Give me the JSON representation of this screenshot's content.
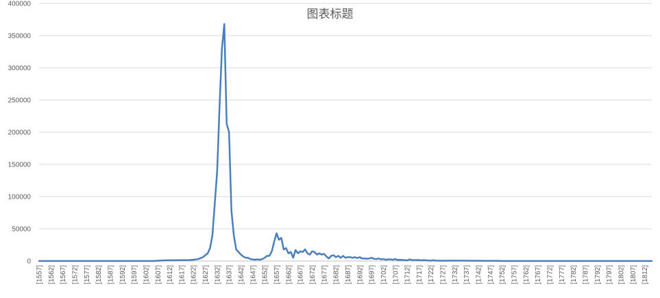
{
  "chart_data": {
    "type": "line",
    "title": "图表标题",
    "xlabel": "",
    "ylabel": "",
    "ylim": [
      0,
      400000
    ],
    "yticks": [
      0,
      50000,
      100000,
      150000,
      200000,
      250000,
      300000,
      350000,
      400000
    ],
    "grid": true,
    "legend": "none",
    "colors": {
      "series": "#4a7ebb",
      "grid": "#d9d9d9",
      "axis": "#bfbfbf",
      "text": "#595959"
    },
    "x_start": 1557,
    "x_end": 1815,
    "x_tick_labels": [
      "[1557]",
      "[1562]",
      "[1567]",
      "[1572]",
      "[1577]",
      "[1582]",
      "[1587]",
      "[1592]",
      "[1597]",
      "[1602]",
      "[1607]",
      "[1612]",
      "[1617]",
      "[1622]",
      "[1627]",
      "[1632]",
      "[1637]",
      "[1642]",
      "[1647]",
      "[1652]",
      "[1657]",
      "[1662]",
      "[1667]",
      "[1672]",
      "[1677]",
      "[1682]",
      "[1687]",
      "[1692]",
      "[1697]",
      "[1702]",
      "[1707]",
      "[1712]",
      "[1717]",
      "[1722]",
      "[1727]",
      "[1732]",
      "[1737]",
      "[1742]",
      "[1747]",
      "[1752]",
      "[1757]",
      "[1762]",
      "[1767]",
      "[1772]",
      "[1777]",
      "[1782]",
      "[1787]",
      "[1792]",
      "[1797]",
      "[1802]",
      "[1807]",
      "[1812]"
    ],
    "series": [
      {
        "points": [
          [
            1557,
            0
          ],
          [
            1605,
            0
          ],
          [
            1610,
            1000
          ],
          [
            1620,
            1500
          ],
          [
            1622,
            2000
          ],
          [
            1624,
            3000
          ],
          [
            1626,
            6000
          ],
          [
            1628,
            12000
          ],
          [
            1629,
            20000
          ],
          [
            1630,
            40000
          ],
          [
            1631,
            90000
          ],
          [
            1632,
            140000
          ],
          [
            1633,
            240000
          ],
          [
            1634,
            330000
          ],
          [
            1635,
            368000
          ],
          [
            1636,
            213000
          ],
          [
            1637,
            200000
          ],
          [
            1638,
            78000
          ],
          [
            1639,
            40000
          ],
          [
            1640,
            18000
          ],
          [
            1641,
            14000
          ],
          [
            1642,
            10000
          ],
          [
            1643,
            7000
          ],
          [
            1644,
            5000
          ],
          [
            1645,
            5000
          ],
          [
            1646,
            3000
          ],
          [
            1647,
            2500
          ],
          [
            1648,
            2000
          ],
          [
            1649,
            2500
          ],
          [
            1650,
            2000
          ],
          [
            1651,
            3000
          ],
          [
            1652,
            5000
          ],
          [
            1653,
            8000
          ],
          [
            1654,
            8000
          ],
          [
            1655,
            15000
          ],
          [
            1656,
            30000
          ],
          [
            1657,
            43000
          ],
          [
            1658,
            33000
          ],
          [
            1659,
            36000
          ],
          [
            1660,
            18000
          ],
          [
            1661,
            20000
          ],
          [
            1662,
            12000
          ],
          [
            1663,
            14000
          ],
          [
            1664,
            5000
          ],
          [
            1665,
            17000
          ],
          [
            1666,
            12000
          ],
          [
            1667,
            15000
          ],
          [
            1668,
            14000
          ],
          [
            1669,
            18000
          ],
          [
            1670,
            12000
          ],
          [
            1671,
            10000
          ],
          [
            1672,
            15000
          ],
          [
            1673,
            14000
          ],
          [
            1674,
            10000
          ],
          [
            1675,
            12000
          ],
          [
            1676,
            10000
          ],
          [
            1677,
            11000
          ],
          [
            1678,
            7000
          ],
          [
            1679,
            4000
          ],
          [
            1680,
            8000
          ],
          [
            1681,
            9000
          ],
          [
            1682,
            6000
          ],
          [
            1683,
            8000
          ],
          [
            1684,
            5000
          ],
          [
            1685,
            8000
          ],
          [
            1686,
            5000
          ],
          [
            1687,
            6000
          ],
          [
            1688,
            6000
          ],
          [
            1689,
            5000
          ],
          [
            1690,
            6000
          ],
          [
            1691,
            4500
          ],
          [
            1692,
            6000
          ],
          [
            1693,
            4000
          ],
          [
            1694,
            4000
          ],
          [
            1695,
            3500
          ],
          [
            1696,
            4000
          ],
          [
            1697,
            5000
          ],
          [
            1698,
            3500
          ],
          [
            1699,
            3000
          ],
          [
            1700,
            4000
          ],
          [
            1701,
            2500
          ],
          [
            1702,
            3000
          ],
          [
            1703,
            2000
          ],
          [
            1704,
            2500
          ],
          [
            1705,
            2500
          ],
          [
            1706,
            2000
          ],
          [
            1707,
            3000
          ],
          [
            1708,
            1500
          ],
          [
            1709,
            2000
          ],
          [
            1710,
            1500
          ],
          [
            1711,
            1500
          ],
          [
            1712,
            1000
          ],
          [
            1713,
            2500
          ],
          [
            1714,
            1500
          ],
          [
            1715,
            1500
          ],
          [
            1716,
            1500
          ],
          [
            1717,
            1500
          ],
          [
            1718,
            1000
          ],
          [
            1719,
            1500
          ],
          [
            1720,
            1000
          ],
          [
            1721,
            800
          ],
          [
            1722,
            600
          ],
          [
            1723,
            1200
          ],
          [
            1724,
            500
          ],
          [
            1725,
            600
          ],
          [
            1726,
            400
          ],
          [
            1730,
            500
          ],
          [
            1735,
            500
          ],
          [
            1740,
            400
          ],
          [
            1745,
            300
          ],
          [
            1750,
            300
          ],
          [
            1752,
            0
          ],
          [
            1815,
            0
          ]
        ]
      }
    ]
  }
}
